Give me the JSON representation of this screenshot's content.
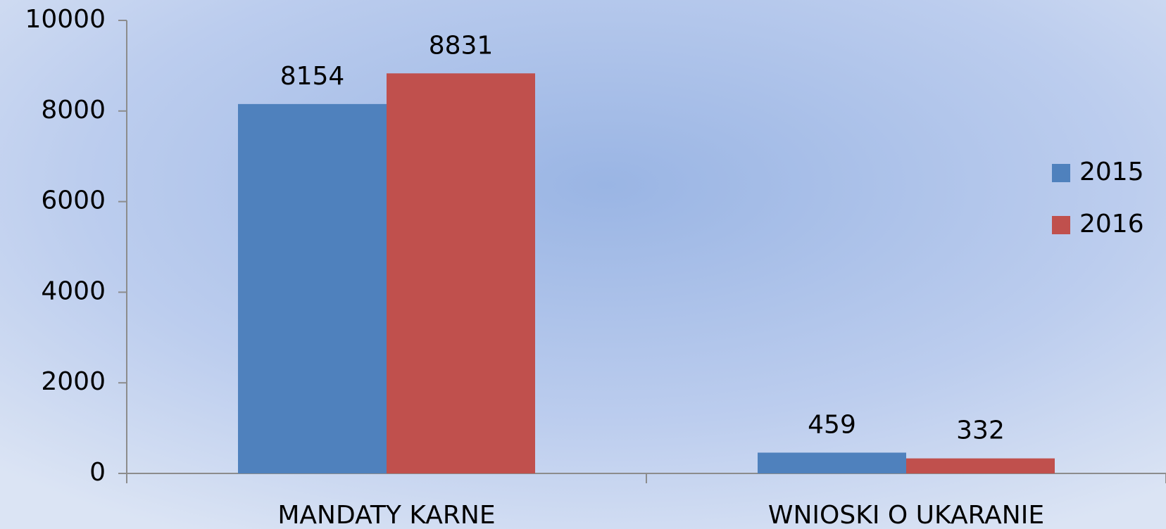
{
  "chart_data": {
    "type": "bar",
    "categories": [
      "MANDATY KARNE",
      "WNIOSKI O UKARANIE"
    ],
    "series": [
      {
        "name": "2015",
        "color": "#4f81bd",
        "values": [
          8154,
          459
        ]
      },
      {
        "name": "2016",
        "color": "#c0504d",
        "values": [
          8831,
          332
        ]
      }
    ],
    "ylim": [
      0,
      10000
    ],
    "yticks": [
      0,
      2000,
      4000,
      6000,
      8000,
      10000
    ],
    "grid": false,
    "legend": "right"
  }
}
